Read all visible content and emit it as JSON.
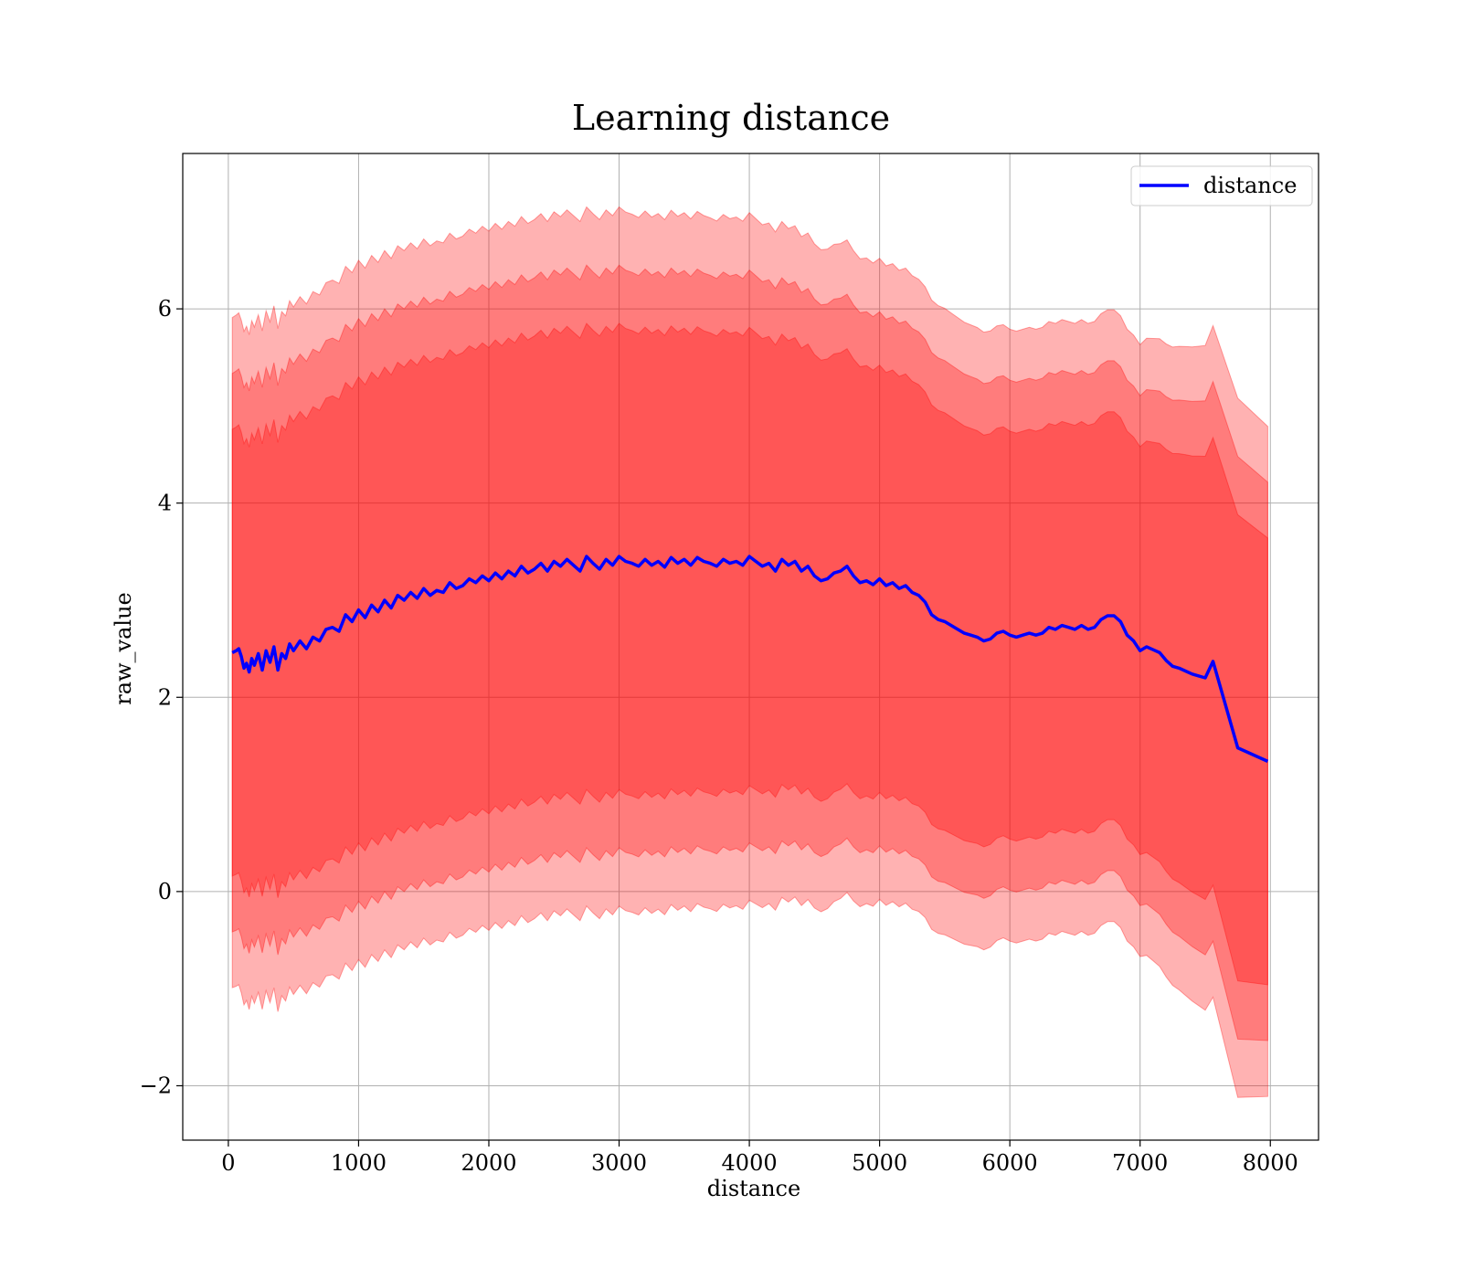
{
  "chart_data": {
    "type": "line",
    "title": "Learning distance",
    "xlabel": "distance",
    "ylabel": "raw_value",
    "xlim": [
      -350,
      8370
    ],
    "ylim": [
      -2.56,
      7.6
    ],
    "xticks": [
      0,
      1000,
      2000,
      3000,
      4000,
      5000,
      6000,
      7000,
      8000
    ],
    "yticks": [
      -2,
      0,
      2,
      4,
      6
    ],
    "ytick_labels": [
      "−2",
      "0",
      "2",
      "4",
      "6"
    ],
    "grid": true,
    "legend": {
      "placement": "top-right",
      "entries": [
        "distance"
      ]
    },
    "colors": {
      "line": "#0000ff",
      "band": "#ff0000",
      "grid": "#b0b0b0"
    },
    "bands": [
      {
        "sigma_multiple": 3,
        "opacity": 0.3
      },
      {
        "sigma_multiple": 2.5,
        "opacity": 0.3
      },
      {
        "sigma_multiple": 2,
        "opacity": 0.3
      }
    ],
    "std_profile": {
      "x": [
        30,
        500,
        1000,
        2000,
        3000,
        4000,
        5000,
        6000,
        7000,
        7550,
        7750,
        7980
      ],
      "std": [
        1.15,
        1.18,
        1.2,
        1.2,
        1.2,
        1.18,
        1.1,
        1.05,
        1.05,
        1.15,
        1.2,
        1.15
      ]
    },
    "series": [
      {
        "name": "distance",
        "x": [
          30,
          60,
          80,
          100,
          120,
          140,
          160,
          180,
          200,
          230,
          260,
          290,
          320,
          350,
          380,
          410,
          440,
          470,
          500,
          550,
          600,
          650,
          700,
          750,
          800,
          850,
          900,
          950,
          1000,
          1050,
          1100,
          1150,
          1200,
          1250,
          1300,
          1350,
          1400,
          1450,
          1500,
          1550,
          1600,
          1650,
          1700,
          1750,
          1800,
          1850,
          1900,
          1950,
          2000,
          2050,
          2100,
          2150,
          2200,
          2250,
          2300,
          2350,
          2400,
          2450,
          2500,
          2550,
          2600,
          2650,
          2700,
          2750,
          2800,
          2850,
          2900,
          2950,
          3000,
          3050,
          3100,
          3150,
          3200,
          3250,
          3300,
          3350,
          3400,
          3450,
          3500,
          3550,
          3600,
          3650,
          3700,
          3750,
          3800,
          3850,
          3900,
          3950,
          4000,
          4050,
          4100,
          4150,
          4200,
          4250,
          4300,
          4350,
          4400,
          4450,
          4500,
          4550,
          4600,
          4650,
          4700,
          4750,
          4800,
          4850,
          4900,
          4950,
          5000,
          5050,
          5100,
          5150,
          5200,
          5250,
          5300,
          5350,
          5400,
          5450,
          5500,
          5550,
          5600,
          5650,
          5700,
          5750,
          5800,
          5850,
          5900,
          5950,
          6000,
          6050,
          6100,
          6150,
          6200,
          6250,
          6300,
          6350,
          6400,
          6450,
          6500,
          6550,
          6600,
          6650,
          6700,
          6750,
          6800,
          6850,
          6900,
          6950,
          7000,
          7050,
          7100,
          7150,
          7200,
          7250,
          7300,
          7350,
          7400,
          7450,
          7500,
          7560,
          7750,
          7980
        ],
        "values": [
          2.46,
          2.48,
          2.5,
          2.42,
          2.3,
          2.35,
          2.26,
          2.4,
          2.33,
          2.45,
          2.28,
          2.48,
          2.36,
          2.52,
          2.28,
          2.45,
          2.4,
          2.55,
          2.48,
          2.58,
          2.5,
          2.62,
          2.58,
          2.7,
          2.72,
          2.68,
          2.85,
          2.78,
          2.9,
          2.82,
          2.95,
          2.88,
          3.0,
          2.92,
          3.05,
          3.0,
          3.08,
          3.02,
          3.12,
          3.05,
          3.1,
          3.08,
          3.18,
          3.12,
          3.15,
          3.22,
          3.18,
          3.25,
          3.2,
          3.28,
          3.22,
          3.3,
          3.25,
          3.35,
          3.28,
          3.32,
          3.38,
          3.3,
          3.4,
          3.35,
          3.42,
          3.36,
          3.3,
          3.45,
          3.38,
          3.32,
          3.42,
          3.36,
          3.45,
          3.4,
          3.38,
          3.35,
          3.42,
          3.36,
          3.4,
          3.34,
          3.44,
          3.38,
          3.42,
          3.36,
          3.44,
          3.4,
          3.38,
          3.35,
          3.42,
          3.38,
          3.4,
          3.36,
          3.45,
          3.4,
          3.35,
          3.38,
          3.3,
          3.42,
          3.36,
          3.4,
          3.3,
          3.35,
          3.25,
          3.2,
          3.22,
          3.28,
          3.3,
          3.35,
          3.25,
          3.18,
          3.2,
          3.16,
          3.22,
          3.15,
          3.18,
          3.12,
          3.15,
          3.08,
          3.05,
          2.98,
          2.85,
          2.8,
          2.78,
          2.74,
          2.7,
          2.66,
          2.64,
          2.62,
          2.58,
          2.6,
          2.66,
          2.68,
          2.64,
          2.62,
          2.64,
          2.66,
          2.64,
          2.66,
          2.72,
          2.7,
          2.74,
          2.72,
          2.7,
          2.74,
          2.7,
          2.72,
          2.8,
          2.84,
          2.84,
          2.78,
          2.64,
          2.58,
          2.48,
          2.52,
          2.49,
          2.46,
          2.38,
          2.32,
          2.3,
          2.27,
          2.24,
          2.22,
          2.2,
          2.37,
          1.48,
          1.34
        ]
      }
    ]
  }
}
